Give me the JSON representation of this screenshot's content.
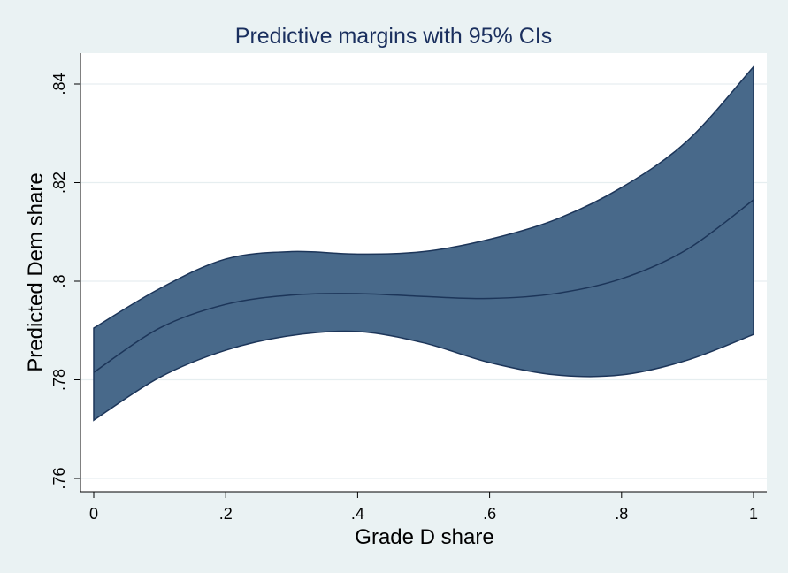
{
  "chart_data": {
    "type": "area",
    "title": "Predictive margins with 95% CIs",
    "xlabel": "Grade D share",
    "ylabel": "Predicted Dem share",
    "xlim": [
      -0.02,
      1.02
    ],
    "ylim": [
      0.757,
      0.846
    ],
    "x_ticks": [
      0,
      0.2,
      0.4,
      0.6,
      0.8,
      1
    ],
    "x_tick_labels": [
      "0",
      ".2",
      ".4",
      ".6",
      ".8",
      "1"
    ],
    "y_ticks": [
      0.76,
      0.78,
      0.8,
      0.82,
      0.84
    ],
    "y_tick_labels": [
      ".76",
      ".78",
      ".8",
      ".82",
      ".84"
    ],
    "grid": true,
    "x": [
      0,
      0.1,
      0.2,
      0.3,
      0.4,
      0.5,
      0.6,
      0.7,
      0.8,
      0.9,
      1.0
    ],
    "series": [
      {
        "role": "estimate",
        "values": [
          0.7815,
          0.7905,
          0.7953,
          0.7972,
          0.7975,
          0.7969,
          0.7965,
          0.7975,
          0.8005,
          0.8065,
          0.8165
        ]
      },
      {
        "role": "upper",
        "values": [
          0.7905,
          0.7985,
          0.8045,
          0.806,
          0.8055,
          0.806,
          0.8085,
          0.8125,
          0.819,
          0.8285,
          0.8435
        ]
      },
      {
        "role": "lower",
        "values": [
          0.7718,
          0.7805,
          0.786,
          0.789,
          0.7898,
          0.7875,
          0.7835,
          0.781,
          0.781,
          0.784,
          0.7892
        ]
      }
    ],
    "colors": {
      "band": "#48698a",
      "band_edge": "#1c3559",
      "line": "#1c3559",
      "plot_bg": "#ffffff",
      "page_bg": "#eaf2f3",
      "grid": "#e6eef0"
    }
  }
}
